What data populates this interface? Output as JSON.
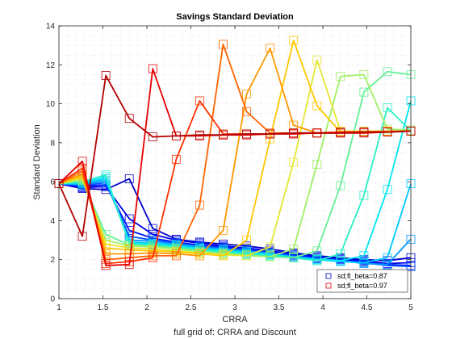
{
  "chart_data": {
    "type": "line",
    "title": "Savings Standard Deviation",
    "subtitle": "full grid of: CRRA and Discount",
    "xlabel": "CRRA",
    "ylabel": "Standard Deviation",
    "xlim": [
      1,
      5
    ],
    "ylim": [
      0,
      14
    ],
    "xticks": [
      1,
      1.5,
      2,
      2.5,
      3,
      3.5,
      4,
      4.5,
      5
    ],
    "yticks": [
      0,
      2,
      4,
      6,
      8,
      10,
      12,
      14
    ],
    "grid": "minor dotted",
    "legend_position": "bottom-right",
    "x": [
      1,
      1.2667,
      1.5333,
      1.8,
      2.0667,
      2.3333,
      2.6,
      2.8667,
      3.1333,
      3.4,
      3.6667,
      3.9333,
      4.2,
      4.4667,
      4.7333,
      5
    ],
    "series": [
      {
        "name": "sd;fl_beta=0.87",
        "color": "#0000c8",
        "marker": "square",
        "values": [
          5.9,
          5.65,
          5.6,
          6.15,
          3.6,
          3.05,
          2.9,
          2.8,
          2.7,
          2.55,
          2.35,
          2.2,
          2.1,
          2.0,
          1.95,
          2.1
        ]
      },
      {
        "color": "#0000e6",
        "marker": "square",
        "values": [
          5.9,
          5.7,
          5.75,
          4.1,
          3.3,
          3.0,
          2.85,
          2.7,
          2.6,
          2.45,
          2.3,
          2.15,
          2.05,
          1.95,
          1.8,
          1.85
        ]
      },
      {
        "color": "#0014ff",
        "marker": "square",
        "values": [
          5.9,
          5.75,
          5.85,
          3.5,
          3.1,
          2.9,
          2.75,
          2.65,
          2.55,
          2.4,
          2.25,
          2.1,
          2.0,
          1.9,
          1.75,
          1.7
        ]
      },
      {
        "color": "#0050ff",
        "marker": "square",
        "values": [
          5.9,
          5.8,
          5.95,
          3.2,
          3.0,
          2.85,
          2.7,
          2.6,
          2.5,
          2.35,
          2.2,
          2.05,
          1.95,
          1.85,
          1.7,
          1.65
        ]
      },
      {
        "color": "#0096ff",
        "marker": "square",
        "values": [
          5.9,
          5.85,
          6.05,
          3.0,
          2.95,
          2.8,
          2.65,
          2.55,
          2.45,
          2.3,
          2.15,
          2.05,
          1.95,
          1.8,
          1.75,
          3.05
        ]
      },
      {
        "color": "#00c8ff",
        "marker": "square",
        "values": [
          5.9,
          5.9,
          6.15,
          2.9,
          2.85,
          2.75,
          2.6,
          2.5,
          2.4,
          2.3,
          2.15,
          2.0,
          1.9,
          1.85,
          2.1,
          5.9
        ]
      },
      {
        "color": "#00e6f0",
        "marker": "square",
        "values": [
          5.9,
          5.95,
          6.25,
          2.85,
          2.8,
          2.7,
          2.55,
          2.45,
          2.35,
          2.25,
          2.1,
          2.0,
          1.95,
          2.2,
          5.6,
          10.15
        ]
      },
      {
        "color": "#28f0c8",
        "marker": "square",
        "values": [
          5.9,
          6.0,
          6.35,
          2.8,
          2.75,
          2.65,
          2.5,
          2.4,
          2.3,
          2.2,
          2.1,
          1.95,
          2.3,
          5.3,
          9.8,
          8.6
        ]
      },
      {
        "color": "#64f096",
        "marker": "square",
        "values": [
          5.9,
          6.05,
          3.3,
          2.75,
          2.7,
          2.6,
          2.45,
          2.35,
          2.25,
          2.15,
          2.1,
          2.45,
          5.8,
          10.6,
          11.65,
          11.5
        ]
      },
      {
        "color": "#a0f064",
        "marker": "square",
        "values": [
          5.9,
          6.1,
          3.0,
          2.7,
          2.65,
          2.55,
          2.4,
          2.3,
          2.2,
          2.15,
          2.55,
          6.9,
          11.4,
          11.5,
          8.7,
          8.65
        ]
      },
      {
        "color": "#e6e632",
        "marker": "square",
        "values": [
          5.9,
          6.2,
          2.8,
          2.6,
          2.55,
          2.45,
          2.35,
          2.25,
          2.2,
          2.65,
          7.0,
          12.25,
          8.6,
          8.6,
          8.6,
          8.6
        ]
      },
      {
        "color": "#ffc800",
        "marker": "square",
        "values": [
          5.9,
          6.3,
          2.6,
          2.5,
          2.45,
          2.4,
          2.3,
          2.2,
          3.0,
          8.2,
          13.25,
          9.9,
          8.55,
          8.55,
          8.6,
          8.6
        ]
      },
      {
        "color": "#ff9600",
        "marker": "square",
        "values": [
          5.9,
          6.4,
          2.3,
          2.3,
          2.35,
          2.3,
          2.2,
          3.5,
          10.5,
          12.85,
          8.9,
          8.5,
          8.55,
          8.55,
          8.6,
          8.6
        ]
      },
      {
        "color": "#ff6400",
        "marker": "square",
        "values": [
          5.9,
          6.55,
          2.0,
          2.1,
          2.2,
          2.2,
          4.8,
          13.05,
          9.6,
          8.5,
          8.5,
          8.5,
          8.55,
          8.55,
          8.55,
          8.6
        ]
      },
      {
        "color": "#ff3200",
        "marker": "square",
        "values": [
          5.9,
          6.7,
          1.8,
          1.9,
          2.1,
          7.15,
          10.15,
          8.45,
          8.45,
          8.45,
          8.5,
          8.5,
          8.55,
          8.55,
          8.55,
          8.6
        ]
      },
      {
        "name": "sd;fl_beta=0.97",
        "color": "#e60000",
        "marker": "square",
        "values": [
          5.9,
          7.05,
          1.7,
          1.75,
          11.8,
          8.35,
          8.35,
          8.4,
          8.4,
          8.45,
          8.45,
          8.5,
          8.5,
          8.5,
          8.55,
          8.6
        ]
      },
      {
        "color": "#b40000",
        "marker": "square",
        "values": [
          5.9,
          3.2,
          11.45,
          9.25,
          8.3,
          8.35,
          8.4,
          8.4,
          8.45,
          8.45,
          8.5,
          8.5,
          8.5,
          8.55,
          8.55,
          8.6
        ]
      }
    ]
  }
}
